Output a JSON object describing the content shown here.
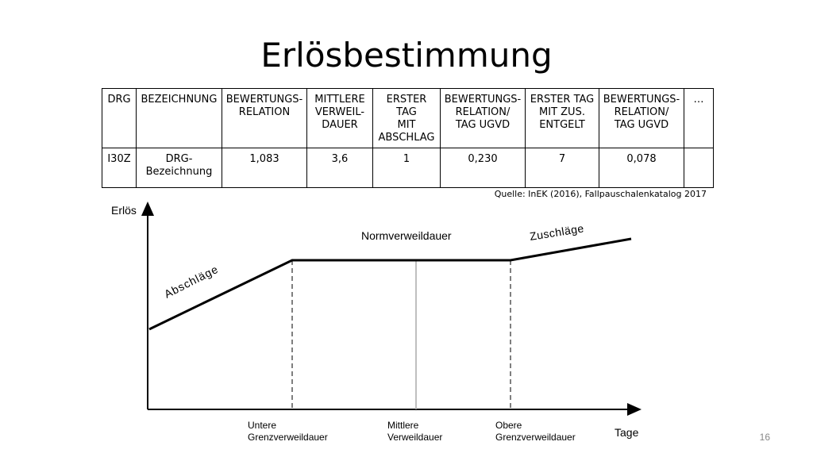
{
  "title": "Erlösbestimmung",
  "table": {
    "headers": [
      "DRG",
      "BEZEICHNUNG",
      "BEWERTUNGS-\nRELATION",
      "MITTLERE\nVERWEIL-\nDAUER",
      "ERSTER TAG\nMIT\nABSCHLAG",
      "BEWERTUNGS-\nRELATION/\nTAG UGVD",
      "ERSTER TAG\nMIT ZUS.\nENTGELT",
      "BEWERTUNGS-\nRELATION/\nTAG UGVD",
      "…"
    ],
    "row": [
      "I30Z",
      "DRG-\nBezeichnung",
      "1,083",
      "3,6",
      "1",
      "0,230",
      "7",
      "0,078",
      ""
    ]
  },
  "source": "Quelle: InEK (2016), Fallpauschalenkatalog 2017",
  "diagram": {
    "y_axis_label": "Erlös",
    "x_axis_label": "Tage",
    "segment_labels": {
      "abschlaege": "Abschläge",
      "norm": "Normverweildauer",
      "zuschlaege": "Zuschläge"
    },
    "markers": {
      "lower": {
        "line1": "Untere",
        "line2": "Grenzverweildauer"
      },
      "mid": {
        "line1": "Mittlere",
        "line2": "Verweildauer"
      },
      "upper": {
        "line1": "Obere",
        "line2": "Grenzverweildauer"
      }
    },
    "line_color": "#000000",
    "marker_color": "#555555",
    "mid_marker_color": "#aaaaaa"
  },
  "page_number": "16"
}
